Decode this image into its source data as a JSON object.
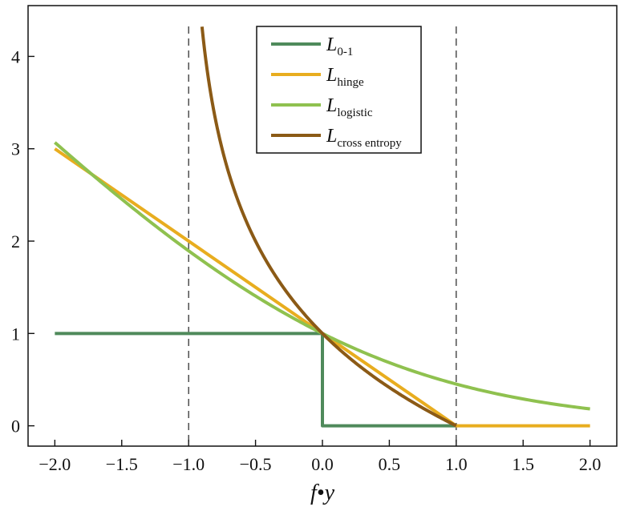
{
  "chart_data": {
    "type": "line",
    "title": "",
    "xlabel": "f•y",
    "ylabel": "",
    "xlim": [
      -2.2,
      2.2
    ],
    "ylim": [
      -0.22,
      4.55
    ],
    "x_ticks": [
      -2.0,
      -1.5,
      -1.0,
      -0.5,
      0.0,
      0.5,
      1.0,
      1.5,
      2.0
    ],
    "x_tick_labels": [
      "−2.0",
      "−1.5",
      "−1.0",
      "−0.5",
      "0.0",
      "0.5",
      "1.0",
      "1.5",
      "2.0"
    ],
    "y_ticks": [
      0,
      1,
      2,
      3,
      4
    ],
    "y_tick_labels": [
      "0",
      "1",
      "2",
      "3",
      "4"
    ],
    "grid": false,
    "legend_position": "top-center",
    "vertical_dashed_lines": [
      -1.0,
      1.0
    ],
    "series": [
      {
        "name": "L",
        "subscript": "0-1",
        "color": "#4f8a5b",
        "x": [
          -2.0,
          0.0,
          0.0,
          1.0
        ],
        "y": [
          1.0,
          1.0,
          0.0,
          0.0
        ]
      },
      {
        "name": "L",
        "subscript": "hinge",
        "color": "#e8ad1f",
        "x": [
          -2.0,
          1.0,
          2.0
        ],
        "y": [
          3.0,
          0.0,
          0.0
        ]
      },
      {
        "name": "L",
        "subscript": "logistic",
        "color": "#8fc14f",
        "x": [
          -2.0,
          -1.5,
          -1.0,
          -0.5,
          0.0,
          0.5,
          1.0,
          1.5,
          2.0
        ],
        "y": [
          3.08,
          2.43,
          1.89,
          1.4,
          1.0,
          0.69,
          0.45,
          0.29,
          0.18
        ]
      },
      {
        "name": "L",
        "subscript": "cross entropy",
        "color": "#8b5a16",
        "x": [
          -0.9,
          -0.8,
          -0.7,
          -0.6,
          -0.5,
          -0.4,
          -0.3,
          -0.2,
          -0.1,
          0.0,
          0.2,
          0.4,
          0.6,
          0.8,
          1.0
        ],
        "y": [
          4.32,
          3.32,
          2.74,
          2.32,
          2.0,
          1.74,
          1.51,
          1.32,
          1.15,
          1.0,
          0.74,
          0.51,
          0.32,
          0.15,
          0.0
        ]
      }
    ]
  }
}
